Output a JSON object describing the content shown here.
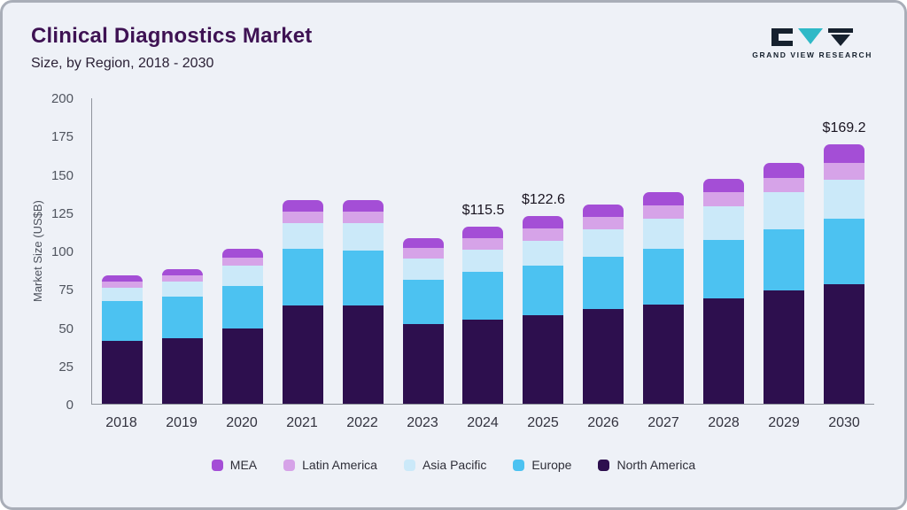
{
  "header": {
    "title": "Clinical Diagnostics Market",
    "subtitle": "Size, by Region, 2018 - 2030",
    "logo_text": "GRAND VIEW RESEARCH"
  },
  "chart_data": {
    "type": "bar",
    "stacked": true,
    "title": "Clinical Diagnostics Market Size, by Region, 2018 - 2030",
    "xlabel": "",
    "ylabel": "Market Size (US$B)",
    "ylim": [
      0,
      200
    ],
    "yticks": [
      0,
      25,
      50,
      75,
      100,
      125,
      150,
      175,
      200
    ],
    "grid": false,
    "legend_position": "bottom",
    "categories": [
      "2018",
      "2019",
      "2020",
      "2021",
      "2022",
      "2023",
      "2024",
      "2025",
      "2026",
      "2027",
      "2028",
      "2029",
      "2030"
    ],
    "series": [
      {
        "name": "North America",
        "color": "#2d0f4e",
        "values": [
          41,
          43,
          49,
          64,
          64,
          52,
          55,
          58,
          62,
          65,
          69,
          74,
          78
        ]
      },
      {
        "name": "Europe",
        "color": "#4cc2f1",
        "values": [
          26,
          27,
          28,
          37,
          36,
          29,
          31,
          32,
          34,
          36,
          38,
          40,
          43
        ]
      },
      {
        "name": "Asia Pacific",
        "color": "#cbe9f9",
        "values": [
          9,
          10,
          13,
          17,
          18,
          14,
          14.5,
          16.6,
          18,
          20,
          22,
          24,
          25
        ]
      },
      {
        "name": "Latin America",
        "color": "#d6a3e8",
        "values": [
          4,
          4,
          5.5,
          7.5,
          7.5,
          6.5,
          7.5,
          8,
          8,
          8.5,
          9,
          9.5,
          11.2
        ]
      },
      {
        "name": "MEA",
        "color": "#a44ed6",
        "values": [
          4,
          4,
          5.5,
          7.5,
          7.5,
          6.5,
          7.5,
          8,
          8,
          8.5,
          9,
          9.5,
          12
        ]
      }
    ],
    "annotations": [
      {
        "category": "2024",
        "text": "$115.5"
      },
      {
        "category": "2025",
        "text": "$122.6"
      },
      {
        "category": "2030",
        "text": "$169.2"
      }
    ],
    "legend_order": [
      "MEA",
      "Latin America",
      "Asia Pacific",
      "Europe",
      "North America"
    ],
    "accent_colors": {
      "teal": "#2fb9c7",
      "dark": "#16212e"
    }
  }
}
